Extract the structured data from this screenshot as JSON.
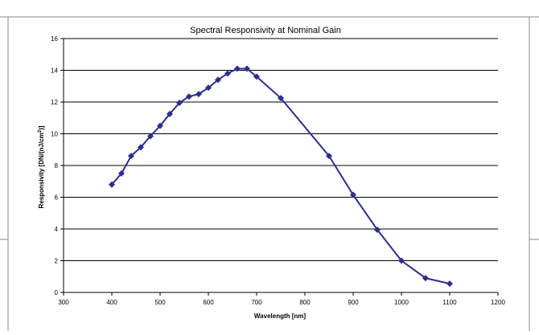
{
  "chart_data": {
    "type": "line",
    "title": "Spectral Responsivity at Nominal Gain",
    "xlabel": "Wavelength [nm]",
    "ylabel_main": "Responsivity [DN/(nJ/cm",
    "ylabel_sup": "2",
    "ylabel_end": ")]",
    "xlim": [
      300,
      1200
    ],
    "ylim": [
      0,
      16
    ],
    "xticks": [
      300,
      400,
      500,
      600,
      700,
      800,
      900,
      1000,
      1100,
      1200
    ],
    "yticks": [
      0,
      2,
      4,
      6,
      8,
      10,
      12,
      14,
      16
    ],
    "grid": "horizontal",
    "series": [
      {
        "color": "#2e2e8c",
        "marker": "diamond",
        "points": [
          [
            400,
            6.8
          ],
          [
            420,
            7.5
          ],
          [
            440,
            8.6
          ],
          [
            460,
            9.15
          ],
          [
            480,
            9.85
          ],
          [
            500,
            10.5
          ],
          [
            520,
            11.25
          ],
          [
            540,
            11.95
          ],
          [
            560,
            12.35
          ],
          [
            580,
            12.5
          ],
          [
            600,
            12.9
          ],
          [
            620,
            13.4
          ],
          [
            640,
            13.8
          ],
          [
            660,
            14.1
          ],
          [
            680,
            14.1
          ],
          [
            700,
            13.6
          ],
          [
            750,
            12.25
          ],
          [
            850,
            8.6
          ],
          [
            900,
            6.15
          ],
          [
            950,
            3.95
          ],
          [
            1000,
            2.0
          ],
          [
            1050,
            0.9
          ],
          [
            1100,
            0.55
          ]
        ]
      }
    ]
  }
}
